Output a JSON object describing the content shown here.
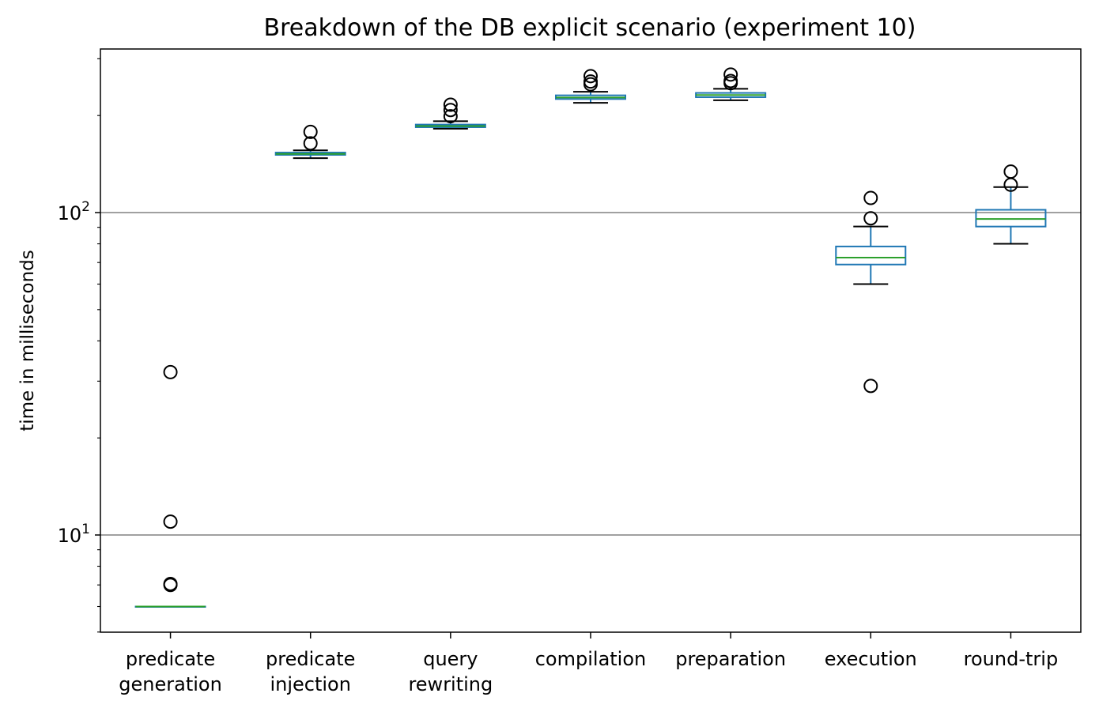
{
  "chart_data": {
    "type": "box",
    "title": "Breakdown of the DB explicit scenario (experiment 10)",
    "xlabel": "",
    "ylabel": "time in milliseconds",
    "yscale": "log",
    "ylim": [
      5,
      320
    ],
    "yticks": [
      {
        "value": 10,
        "base": "10",
        "exp": "1"
      },
      {
        "value": 100,
        "base": "10",
        "exp": "2"
      }
    ],
    "grid": "horizontal major lines",
    "colors": {
      "box": "#1f77b4",
      "median": "#2ca02c",
      "whisker_cap": "#000000",
      "grid": "#808080"
    },
    "categories": [
      {
        "label_lines": [
          "predicate",
          "generation"
        ],
        "q1": 6.0,
        "median": 6.0,
        "q3": 6.0,
        "whisker_low": 6.0,
        "whisker_high": 6.0,
        "outliers": [
          7.0,
          7.05,
          11.0,
          32.0
        ]
      },
      {
        "label_lines": [
          "predicate",
          "injection"
        ],
        "q1": 151.0,
        "median": 152.0,
        "q3": 153.5,
        "whisker_low": 147.5,
        "whisker_high": 156.0,
        "outliers": [
          164.0,
          178.0
        ]
      },
      {
        "label_lines": [
          "query",
          "rewriting"
        ],
        "q1": 184.0,
        "median": 185.5,
        "q3": 187.5,
        "whisker_low": 182.0,
        "whisker_high": 192.0,
        "outliers": [
          199.0,
          208.0,
          216.0
        ]
      },
      {
        "label_lines": [
          "compilation"
        ],
        "q1": 225.0,
        "median": 227.5,
        "q3": 231.0,
        "whisker_low": 219.0,
        "whisker_high": 237.0,
        "outliers": [
          250.0,
          255.0,
          265.0
        ]
      },
      {
        "label_lines": [
          "preparation"
        ],
        "q1": 228.0,
        "median": 231.5,
        "q3": 235.0,
        "whisker_low": 223.0,
        "whisker_high": 242.0,
        "outliers": [
          252.0,
          256.0,
          268.0
        ]
      },
      {
        "label_lines": [
          "execution"
        ],
        "q1": 69.0,
        "median": 72.5,
        "q3": 78.5,
        "whisker_low": 60.0,
        "whisker_high": 90.5,
        "outliers": [
          29.0,
          96.0,
          111.0
        ]
      },
      {
        "label_lines": [
          "round-trip"
        ],
        "q1": 90.5,
        "median": 95.5,
        "q3": 102.0,
        "whisker_low": 80.0,
        "whisker_high": 120.0,
        "outliers": [
          122.0,
          134.0
        ]
      }
    ]
  }
}
